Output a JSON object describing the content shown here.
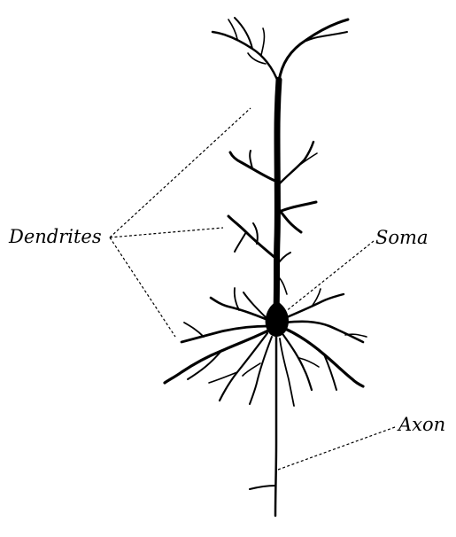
{
  "labels": {
    "dendrites": "Dendrites",
    "soma": "Soma",
    "axon": "Axon"
  },
  "colors": {
    "ink": "#000000",
    "background": "#ffffff"
  }
}
